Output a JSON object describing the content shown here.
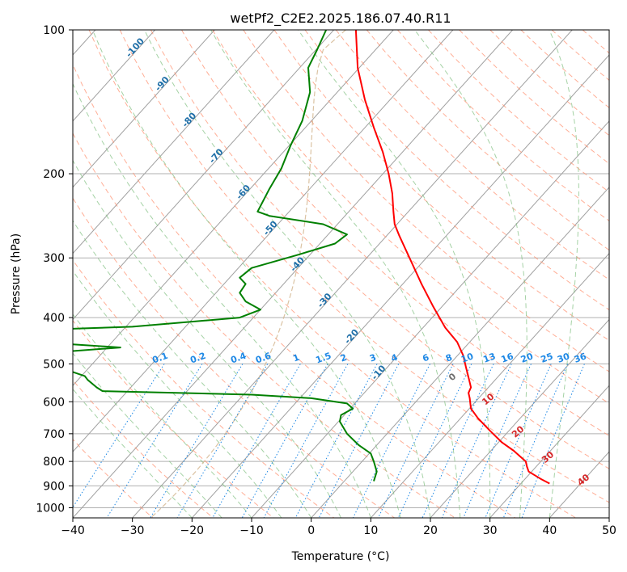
{
  "chart_data": {
    "type": "line",
    "title": "wetPf2_C2E2.2025.186.07.40.R11",
    "xlabel": "Temperature (°C)",
    "ylabel": "Pressure (hPa)",
    "xlim": [
      -40,
      50
    ],
    "ylim": [
      1050,
      100
    ],
    "y_scale": "log",
    "grid": true,
    "x_ticks": [
      "−40",
      "−30",
      "−20",
      "−10",
      "0",
      "10",
      "20",
      "30",
      "40",
      "50"
    ],
    "x_tick_values": [
      -40,
      -30,
      -20,
      -10,
      0,
      10,
      20,
      30,
      40,
      50
    ],
    "y_ticks": [
      "100",
      "200",
      "300",
      "400",
      "500",
      "600",
      "700",
      "800",
      "900",
      "1000"
    ],
    "y_tick_values": [
      100,
      200,
      300,
      400,
      500,
      600,
      700,
      800,
      900,
      1000
    ],
    "colors": {
      "temperature": "#ff0000",
      "dewpoint": "#008000",
      "isotherm": "#a0a0a0",
      "dry_adiabat": "#ff8c69",
      "moist_adiabat": "#7fbf7f",
      "mixing_ratio": "#1e88e5",
      "ice_line": "#d2b48c",
      "isotherm_label": "#1f6fa8",
      "adiabat_label": "#d62728"
    },
    "series": [
      {
        "key": "temperature",
        "points": [
          [
            7.5,
            100
          ],
          [
            7.8,
            120
          ],
          [
            9,
            140
          ],
          [
            10.5,
            160
          ],
          [
            12,
            180
          ],
          [
            13,
            200
          ],
          [
            13.6,
            220
          ],
          [
            13.8,
            240
          ],
          [
            14,
            255
          ],
          [
            14.8,
            270
          ],
          [
            16.5,
            300
          ],
          [
            18.5,
            340
          ],
          [
            20.5,
            380
          ],
          [
            22.5,
            420
          ],
          [
            24.5,
            450
          ],
          [
            25.5,
            480
          ],
          [
            26,
            510
          ],
          [
            26.5,
            540
          ],
          [
            26.8,
            560
          ],
          [
            26.4,
            575
          ],
          [
            26.6,
            590
          ],
          [
            26.8,
            620
          ],
          [
            28,
            650
          ],
          [
            30,
            690
          ],
          [
            32,
            730
          ],
          [
            34,
            760
          ],
          [
            35,
            780
          ],
          [
            36,
            800
          ],
          [
            36.2,
            820
          ],
          [
            36.5,
            840
          ],
          [
            38.5,
            870
          ],
          [
            40,
            890
          ]
        ]
      },
      {
        "key": "dewpoint",
        "points": [
          [
            2.5,
            100
          ],
          [
            1,
            110
          ],
          [
            -0.5,
            120
          ],
          [
            -0.2,
            135
          ],
          [
            -1.5,
            155
          ],
          [
            -3.5,
            175
          ],
          [
            -5,
            195
          ],
          [
            -7,
            215
          ],
          [
            -9,
            240
          ],
          [
            -7,
            245
          ],
          [
            2,
            255
          ],
          [
            6,
            268
          ],
          [
            4,
            280
          ],
          [
            -2,
            295
          ],
          [
            -10,
            315
          ],
          [
            -12,
            330
          ],
          [
            -11,
            340
          ],
          [
            -12,
            355
          ],
          [
            -11,
            370
          ],
          [
            -8.5,
            385
          ],
          [
            -12,
            400
          ],
          [
            -30,
            418
          ],
          [
            -40,
            422
          ]
        ]
      },
      {
        "key": "dewpoint",
        "points": [
          [
            -40,
            455
          ],
          [
            -32,
            462
          ],
          [
            -40,
            470
          ]
        ]
      },
      {
        "key": "dewpoint",
        "points": [
          [
            -40,
            520
          ],
          [
            -38,
            530
          ],
          [
            -37.5,
            540
          ],
          [
            -36,
            560
          ],
          [
            -35,
            570
          ],
          [
            -10,
            580
          ],
          [
            0,
            590
          ],
          [
            6,
            605
          ],
          [
            7,
            620
          ],
          [
            5,
            640
          ],
          [
            4.8,
            660
          ],
          [
            6,
            700
          ],
          [
            8,
            740
          ],
          [
            10,
            770
          ],
          [
            10.5,
            800
          ],
          [
            11,
            840
          ],
          [
            10.5,
            880
          ]
        ]
      }
    ],
    "isotherm_labels": [
      {
        "text": "-100",
        "t": -100
      },
      {
        "text": "-90",
        "t": -90
      },
      {
        "text": "-80",
        "t": -80
      },
      {
        "text": "-70",
        "t": -70
      },
      {
        "text": "-60",
        "t": -60
      },
      {
        "text": "-50",
        "t": -50
      },
      {
        "text": "-40",
        "t": -40
      },
      {
        "text": "-30",
        "t": -30
      },
      {
        "text": "-20",
        "t": -20
      },
      {
        "text": "-10",
        "t": -10
      }
    ],
    "mixing_ratio_labels": [
      "0.1",
      "0.2",
      "0.4",
      "0.6",
      "1",
      "1.5",
      "2",
      "3",
      "4",
      "6",
      "8",
      "10",
      "13",
      "16",
      "20",
      "25",
      "30",
      "36"
    ],
    "mixing_ratio_values": [
      0.1,
      0.2,
      0.4,
      0.6,
      1,
      1.5,
      2,
      3,
      4,
      6,
      8,
      10,
      13,
      16,
      20,
      25,
      30,
      36
    ],
    "adiabat_labels": [
      "0",
      "10",
      "20",
      "30",
      "40"
    ],
    "adiabat_label_values": [
      0,
      10,
      20,
      30,
      40
    ]
  }
}
